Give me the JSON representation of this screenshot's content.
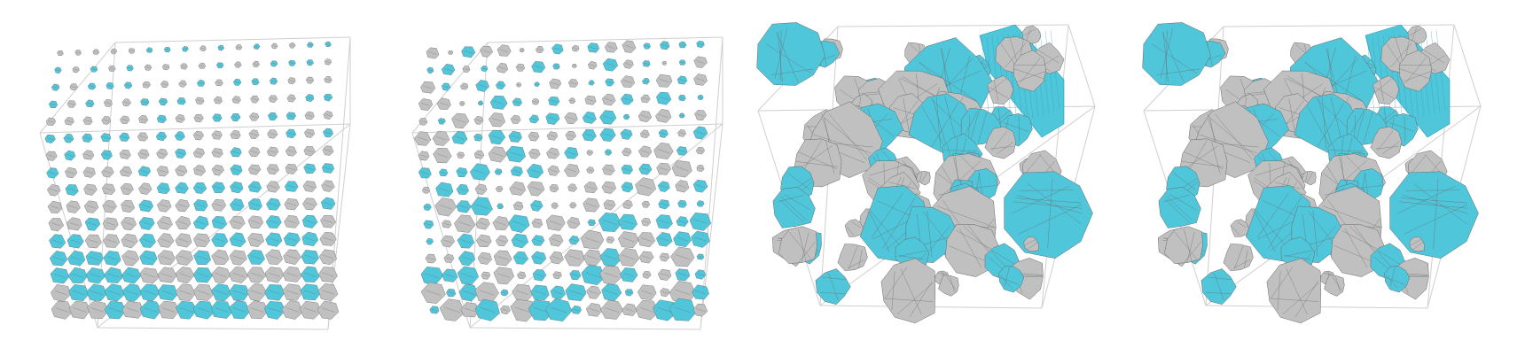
{
  "figure": {
    "panels": [
      {
        "id": "regular-lattice-uniform",
        "style": "lattice",
        "colors": {
          "a": "#b9b9b9",
          "b": "#4fc6da"
        }
      },
      {
        "id": "regular-lattice-varied",
        "style": "lattice-varied",
        "colors": {
          "a": "#b9b9b9",
          "b": "#4fc6da"
        }
      },
      {
        "id": "random-packing-1",
        "style": "blobs",
        "colors": {
          "a": "#c8c8c8",
          "b": "#45c3dc"
        }
      },
      {
        "id": "random-packing-2",
        "style": "blobs",
        "colors": {
          "a": "#c8c8c8",
          "b": "#45c3dc"
        }
      }
    ],
    "colors": {
      "grey_particle": "#c0c0c0",
      "cyan_particle": "#4fc6da",
      "mesh_line": "#6a6a6a",
      "box_edge": "#cfcfcf"
    }
  }
}
